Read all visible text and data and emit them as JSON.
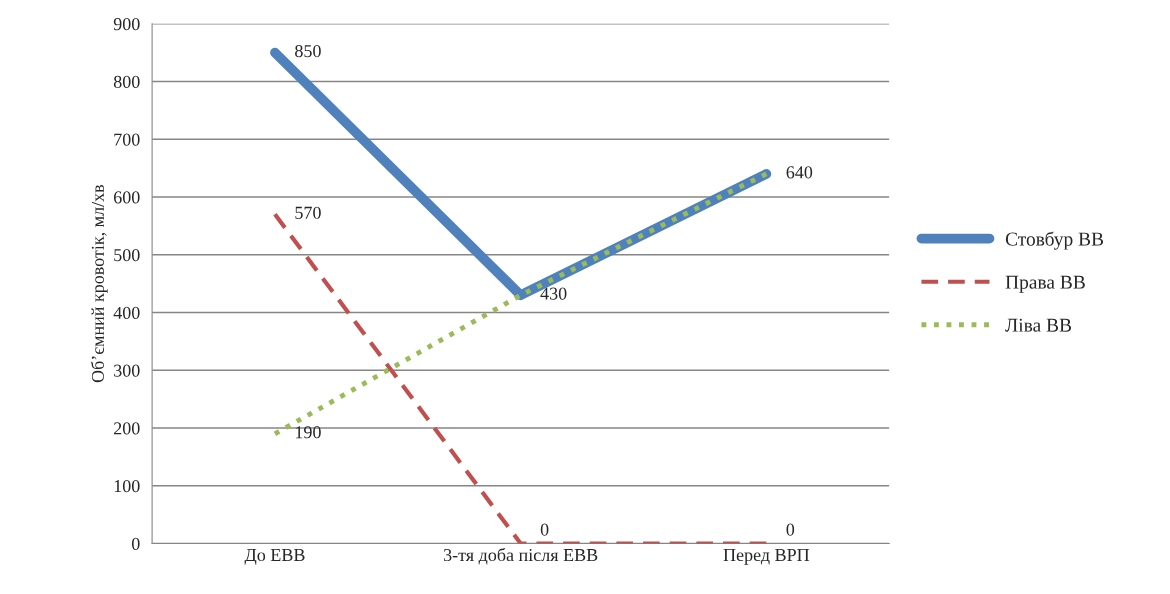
{
  "chart_data": {
    "type": "line",
    "ylabel": "Об’ємний кровотік, мл/хв",
    "categories": [
      "До ЕВВ",
      "3-тя доба після ЕВВ",
      "Перед ВРП"
    ],
    "series": [
      {
        "name": "Стовбур ВВ",
        "color": "#4f81bd",
        "values": [
          850,
          430,
          640
        ],
        "line_style": "solid",
        "value_labels": [
          "850",
          "430",
          "640"
        ]
      },
      {
        "name": "Права ВВ",
        "color": "#c0504d",
        "values": [
          570,
          0,
          0
        ],
        "line_style": "dashed",
        "value_labels": [
          "570",
          "0",
          "0"
        ]
      },
      {
        "name": "Ліва ВВ",
        "color": "#9bbb59",
        "values": [
          190,
          430,
          640
        ],
        "line_style": "dotted",
        "value_labels": [
          "190",
          null,
          null
        ]
      }
    ],
    "ylim": [
      0,
      900
    ],
    "yticks": [
      0,
      100,
      200,
      300,
      400,
      500,
      600,
      700,
      800,
      900
    ],
    "grid": "y",
    "legend": "right"
  }
}
